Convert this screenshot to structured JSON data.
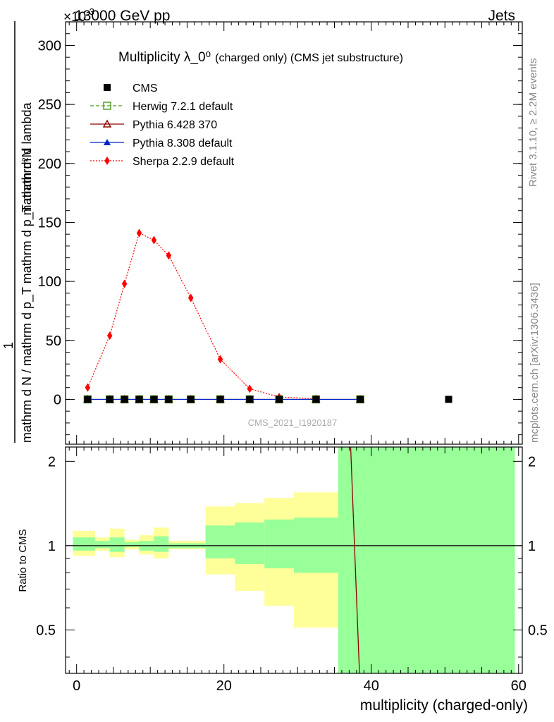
{
  "header": {
    "left": "13000 GeV pp",
    "right": "Jets",
    "exponent": "×10",
    "exponent_power": "-3"
  },
  "side_labels": {
    "rivet": "Rivet 3.1.10, ≥ 2.2M events",
    "mcplots": "mcplots.cern.ch [arXiv:1306.3436]"
  },
  "chart_data": [
    {
      "type": "line",
      "title": "Multiplicity λ_0⁰",
      "title_suffix": "(charged only) (CMS jet substructure)",
      "ylabel_numerator": "mathrm d²N",
      "ylabel_denominator": "mathrm d N / mathrm d p_T mathrm d p_T mathrm d lambda",
      "ylabel_prefix": "1",
      "watermark": "CMS_2021_I1920187",
      "xlim": [
        -1.5,
        60.5
      ],
      "ylim": [
        -38,
        320
      ],
      "yticks": [
        0,
        50,
        100,
        150,
        200,
        250,
        300
      ],
      "ytick_labels": [
        "0",
        "50",
        "100",
        "150",
        "200",
        "250",
        "300"
      ],
      "legend_placement": "top-left",
      "series": [
        {
          "name": "CMS",
          "color": "#000000",
          "marker": "square-filled",
          "line": "none",
          "x": [
            1.5,
            4.5,
            6.5,
            8.5,
            10.5,
            12.5,
            15.5,
            19.5,
            23.5,
            27.5,
            32.5,
            38.5,
            50.5
          ],
          "y": [
            0,
            0,
            0,
            0,
            0,
            0,
            0,
            0,
            0,
            0,
            0,
            0,
            0
          ]
        },
        {
          "name": "Herwig 7.2.1 default",
          "color": "#4a9a1a",
          "marker": "square-open",
          "line": "dashed",
          "x": [
            1.5,
            4.5,
            6.5,
            8.5,
            10.5,
            12.5,
            15.5,
            19.5,
            23.5,
            27.5,
            32.5,
            38.5
          ],
          "y": [
            0,
            0,
            0,
            0,
            0,
            0,
            0,
            0,
            0,
            0,
            0,
            0
          ]
        },
        {
          "name": "Pythia 6.428 370",
          "color": "#8b0000",
          "marker": "triangle-open",
          "line": "solid",
          "x": [
            1.5,
            4.5,
            6.5,
            8.5,
            10.5,
            12.5,
            15.5,
            19.5,
            23.5,
            27.5,
            32.5,
            38.5
          ],
          "y": [
            0,
            0,
            0,
            0,
            0,
            0,
            0,
            0,
            0,
            0,
            0,
            0
          ]
        },
        {
          "name": "Pythia 8.308 default",
          "color": "#0022cc",
          "marker": "triangle-filled",
          "line": "solid",
          "x": [
            1.5,
            4.5,
            6.5,
            8.5,
            10.5,
            12.5,
            15.5,
            19.5,
            23.5,
            27.5,
            32.5,
            38.5
          ],
          "y": [
            0,
            0,
            0,
            0,
            0,
            0,
            0,
            0,
            0,
            0,
            0,
            0
          ]
        },
        {
          "name": "Sherpa 2.2.9 default",
          "color": "#ff0000",
          "marker": "diamond-filled",
          "line": "dotted",
          "x": [
            1.5,
            4.5,
            6.5,
            8.5,
            10.5,
            12.5,
            15.5,
            19.5,
            23.5,
            27.5,
            32.5
          ],
          "y": [
            10,
            54,
            98,
            141,
            135,
            122,
            86,
            34,
            9,
            2,
            0.5
          ]
        }
      ]
    },
    {
      "type": "area",
      "ylabel": "Ratio to CMS",
      "xlabel": "multiplicity (charged-only)",
      "xlim": [
        -1.5,
        60.5
      ],
      "ylim": [
        0.35,
        2.25
      ],
      "xticks": [
        0,
        20,
        40,
        60
      ],
      "xtick_labels": [
        "0",
        "20",
        "40",
        "60"
      ],
      "yticks": [
        0.5,
        1,
        2
      ],
      "ytick_labels": [
        "0.5",
        "1",
        "2"
      ],
      "yellow_band_color": "#ffff99",
      "green_band_color": "#99ff99",
      "bins": [
        {
          "lo": -0.5,
          "hi": 2.5,
          "yellow": [
            0.92,
            1.13
          ],
          "green": [
            0.96,
            1.07
          ]
        },
        {
          "lo": 2.5,
          "hi": 4.5,
          "yellow": [
            0.96,
            1.07
          ],
          "green": [
            0.98,
            1.04
          ]
        },
        {
          "lo": 4.5,
          "hi": 6.5,
          "yellow": [
            0.91,
            1.15
          ],
          "green": [
            0.95,
            1.07
          ]
        },
        {
          "lo": 6.5,
          "hi": 8.5,
          "yellow": [
            0.97,
            1.05
          ],
          "green": [
            0.99,
            1.03
          ]
        },
        {
          "lo": 8.5,
          "hi": 10.5,
          "yellow": [
            0.93,
            1.09
          ],
          "green": [
            0.96,
            1.04
          ]
        },
        {
          "lo": 10.5,
          "hi": 12.5,
          "yellow": [
            0.9,
            1.16
          ],
          "green": [
            0.95,
            1.08
          ]
        },
        {
          "lo": 12.5,
          "hi": 17.5,
          "yellow": [
            0.97,
            1.04
          ],
          "green": [
            0.98,
            1.02
          ]
        },
        {
          "lo": 17.5,
          "hi": 21.5,
          "yellow": [
            0.79,
            1.38
          ],
          "green": [
            0.9,
            1.18
          ]
        },
        {
          "lo": 21.5,
          "hi": 25.5,
          "yellow": [
            0.69,
            1.42
          ],
          "green": [
            0.86,
            1.21
          ]
        },
        {
          "lo": 25.5,
          "hi": 29.5,
          "yellow": [
            0.61,
            1.48
          ],
          "green": [
            0.83,
            1.24
          ]
        },
        {
          "lo": 29.5,
          "hi": 35.5,
          "yellow": [
            0.51,
            1.55
          ],
          "green": [
            0.8,
            1.26
          ]
        },
        {
          "lo": 35.5,
          "hi": 59.5,
          "yellow": [
            0.35,
            2.25
          ],
          "green": [
            0.35,
            2.25
          ]
        }
      ],
      "ratio_lines": [
        {
          "name": "Pythia 6.428 370",
          "color": "#8b0000",
          "x": [
            37.2,
            38.4
          ],
          "y": [
            2.25,
            0.35
          ]
        }
      ]
    }
  ]
}
